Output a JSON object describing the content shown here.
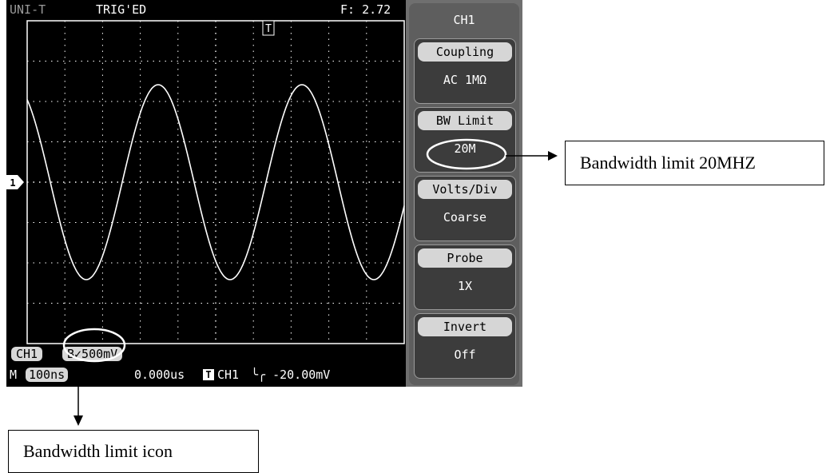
{
  "screen": {
    "brand": "UNI-T",
    "trigger_state": "TRIG'ED",
    "frequency": "F: 2.72",
    "trigger_marker": "T",
    "channel_marker": "1"
  },
  "bottom": {
    "channel": "CH1",
    "volts_div": "B✓500mV",
    "m_label": "M",
    "timebase": "100ns",
    "delay": "0.000us",
    "trigger_icon": "T",
    "trigger_source": "CH1",
    "trigger_slope_level": "╰╭ -20.00mV"
  },
  "menu": {
    "title": "CH1",
    "items": [
      {
        "label": "Coupling",
        "value": "AC 1MΩ"
      },
      {
        "label": "BW Limit",
        "value": "20M"
      },
      {
        "label": "Volts/Div",
        "value": "Coarse"
      },
      {
        "label": "Probe",
        "value": "1X"
      },
      {
        "label": "Invert",
        "value": "Off"
      }
    ]
  },
  "annotations": {
    "bw_limit_20": "Bandwidth limit 20MHZ",
    "bw_limit_icon": "Bandwidth limit icon"
  },
  "colors": {
    "screen_bg": "#000000",
    "trace": "#ffffff",
    "menu_bg": "#5e5e5e",
    "menu_head": "#d6d6d6"
  }
}
